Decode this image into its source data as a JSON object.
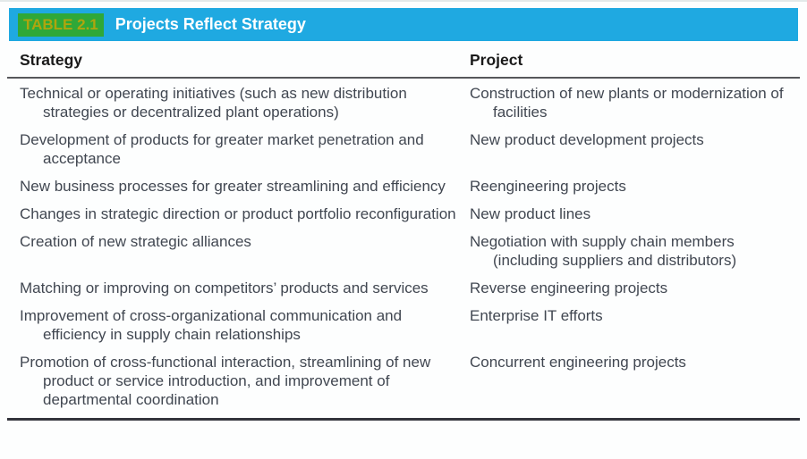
{
  "header": {
    "badge": "TABLE 2.1",
    "title": "Projects Reflect Strategy"
  },
  "colors": {
    "bar_blue": "#1FA9E1",
    "badge_green": "#2FA838",
    "badge_text_olive": "#AEA50E",
    "title_text": "#FFFFFF",
    "column_header_text": "#1A1A1A",
    "body_text": "#414751"
  },
  "table": {
    "columns": [
      "Strategy",
      "Project"
    ],
    "rows": [
      {
        "strategy": "Technical or operating initiatives (such as new distribution strategies or decentralized plant operations)",
        "project": "Construction of new plants or moderniza­tion of facilities"
      },
      {
        "strategy": "Development of products for greater market penetration and acceptance",
        "project": "New product development projects"
      },
      {
        "strategy": "New business processes for greater streamlining and efficiency",
        "project": "Reengineering projects"
      },
      {
        "strategy": "Changes in strategic direction or product portfolio reconfiguration",
        "project": "New product lines"
      },
      {
        "strategy": "Creation of new strategic alliances",
        "project": "Negotiation with supply chain members (including suppliers and distributors)"
      },
      {
        "strategy": "Matching or improving on competitors’ products and services",
        "project": "Reverse engineering projects"
      },
      {
        "strategy": "Improvement of cross-organizational communication and efficiency in supply chain relationships",
        "project": "Enterprise IT efforts"
      },
      {
        "strategy": "Promotion of cross-functional interaction, streamlining of new product or service introduction, and improvement of departmental coordination",
        "project": "Concurrent engineering projects"
      }
    ]
  }
}
